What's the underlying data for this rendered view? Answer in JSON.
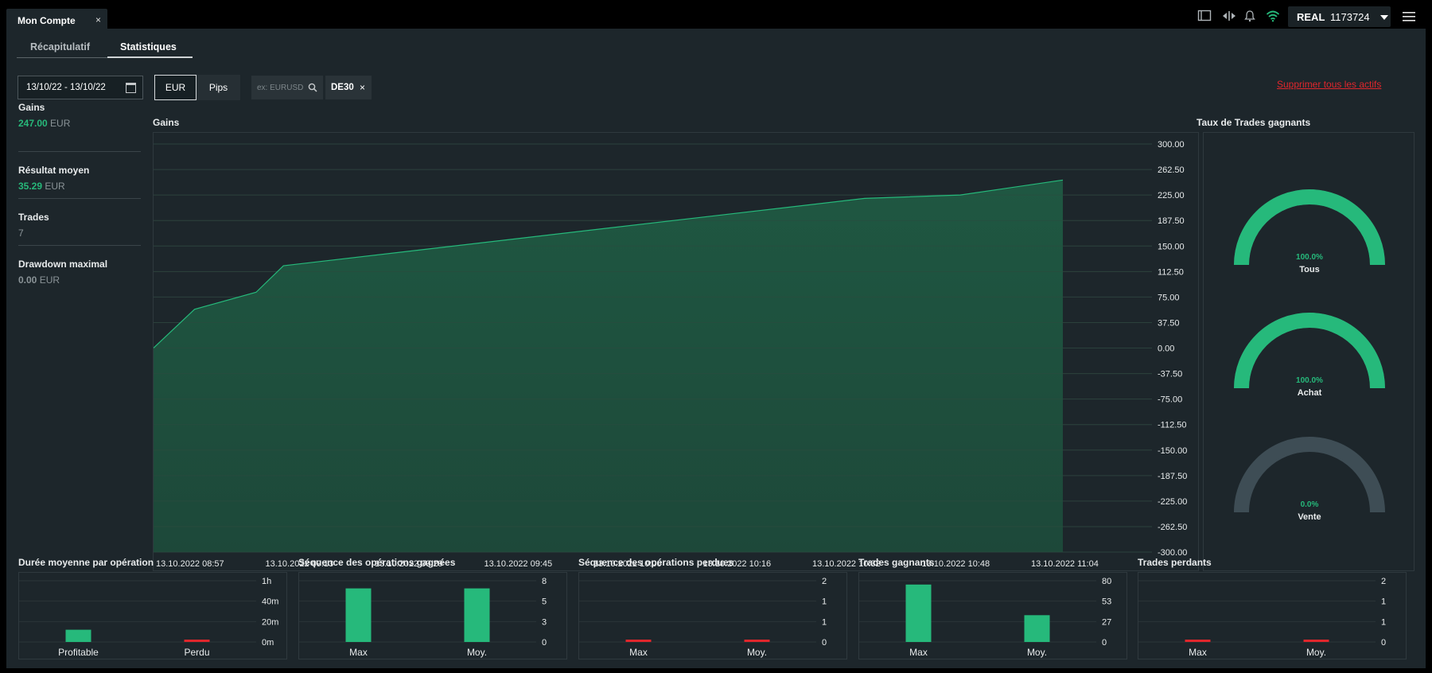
{
  "window": {
    "tab_title": "Mon Compte",
    "tab_close": "×"
  },
  "topbar": {
    "icons": [
      "layout-icon",
      "transfer-icon",
      "bell-icon",
      "wifi-icon",
      "menu-icon"
    ],
    "account_mode": "REAL",
    "account_number": "1173724"
  },
  "subtabs": [
    {
      "label": "Récapitulatif",
      "active": false
    },
    {
      "label": "Statistiques",
      "active": true
    }
  ],
  "filters": {
    "date_range": "13/10/22 - 13/10/22",
    "unit_options": [
      "EUR",
      "Pips"
    ],
    "unit_selected": "EUR",
    "search_placeholder": "ex: EURUSD",
    "selected_symbol": "DE30",
    "delete_all_label": "Supprimer tous les actifs"
  },
  "stats": [
    {
      "label": "Gains",
      "value": "247.00",
      "unit": "EUR",
      "positive": true
    },
    {
      "label": "Résultat moyen",
      "value": "35.29",
      "unit": "EUR",
      "positive": true
    },
    {
      "label": "Trades",
      "value": "7",
      "unit": "",
      "positive": false
    },
    {
      "label": "Drawdown maximal",
      "value": "0.00",
      "unit": "EUR",
      "positive": false
    }
  ],
  "colors": {
    "green": "#26b97b",
    "red": "#e0262c",
    "gray_gauge": "#3e4d55",
    "panel": "#1d262b"
  },
  "chart_data": [
    {
      "type": "area",
      "title": "Gains",
      "x": [
        "13.10.2022 08:57",
        "13.10.2022 09:03",
        "13.10.2022 09:12",
        "13.10.2022 09:16",
        "13.10.2022 10:41",
        "13.10.2022 10:55",
        "13.10.2022 11:10"
      ],
      "y": [
        0,
        57,
        82,
        121,
        220,
        225,
        247
      ],
      "x_tick_labels": [
        "13.10.2022 08:57",
        "13.10.2022 09:13",
        "13.10.2022 09:29",
        "13.10.2022 09:45",
        "13.10.2022 10:00",
        "13.10.2022 10:16",
        "13.10.2022 10:32",
        "13.10.2022 10:48",
        "13.10.2022 11:04"
      ],
      "y_tick_labels": [
        "300.00",
        "262.50",
        "225.00",
        "187.50",
        "150.00",
        "112.50",
        "75.00",
        "37.50",
        "0.00",
        "-37.50",
        "-75.00",
        "-112.50",
        "-150.00",
        "-187.50",
        "-225.00",
        "-262.50",
        "-300.00"
      ],
      "ylim": [
        -300,
        300
      ],
      "grid": true
    },
    {
      "type": "gauge",
      "title": "Taux de Trades gagnants",
      "items": [
        {
          "label": "Tous",
          "value": 100.0,
          "text": "100.0%"
        },
        {
          "label": "Achat",
          "value": 100.0,
          "text": "100.0%"
        },
        {
          "label": "Vente",
          "value": 0.0,
          "text": "0.0%"
        }
      ]
    },
    {
      "type": "bar",
      "title": "Durée moyenne par opération",
      "categories": [
        "Profitable",
        "Perdu"
      ],
      "values": [
        12,
        2
      ],
      "value_unit": "minutes",
      "ylim": [
        0,
        60
      ],
      "y_tick_labels": [
        "1h",
        "40m",
        "20m",
        "0m"
      ],
      "bar_colors": [
        "green",
        "red"
      ]
    },
    {
      "type": "bar",
      "title": "Séquence des opérations gagnées",
      "categories": [
        "Max",
        "Moy."
      ],
      "values": [
        7,
        7
      ],
      "ylim": [
        0,
        8
      ],
      "y_tick_labels": [
        "8",
        "5",
        "3",
        "0"
      ],
      "bar_colors": [
        "green",
        "green"
      ]
    },
    {
      "type": "bar",
      "title": "Séquence des opérations perdues",
      "categories": [
        "Max",
        "Moy."
      ],
      "values": [
        0,
        0
      ],
      "ylim": [
        0,
        2
      ],
      "y_tick_labels": [
        "2",
        "1",
        "1",
        "0"
      ],
      "bar_colors": [
        "red",
        "red"
      ]
    },
    {
      "type": "bar",
      "title": "Trades gagnants",
      "categories": [
        "Max",
        "Moy."
      ],
      "values": [
        75,
        35
      ],
      "ylim": [
        0,
        80
      ],
      "y_tick_labels": [
        "80",
        "53",
        "27",
        "0"
      ],
      "bar_colors": [
        "green",
        "green"
      ]
    },
    {
      "type": "bar",
      "title": "Trades perdants",
      "categories": [
        "Max",
        "Moy."
      ],
      "values": [
        0,
        0
      ],
      "ylim": [
        0,
        2
      ],
      "y_tick_labels": [
        "2",
        "1",
        "1",
        "0"
      ],
      "bar_colors": [
        "red",
        "red"
      ]
    }
  ]
}
